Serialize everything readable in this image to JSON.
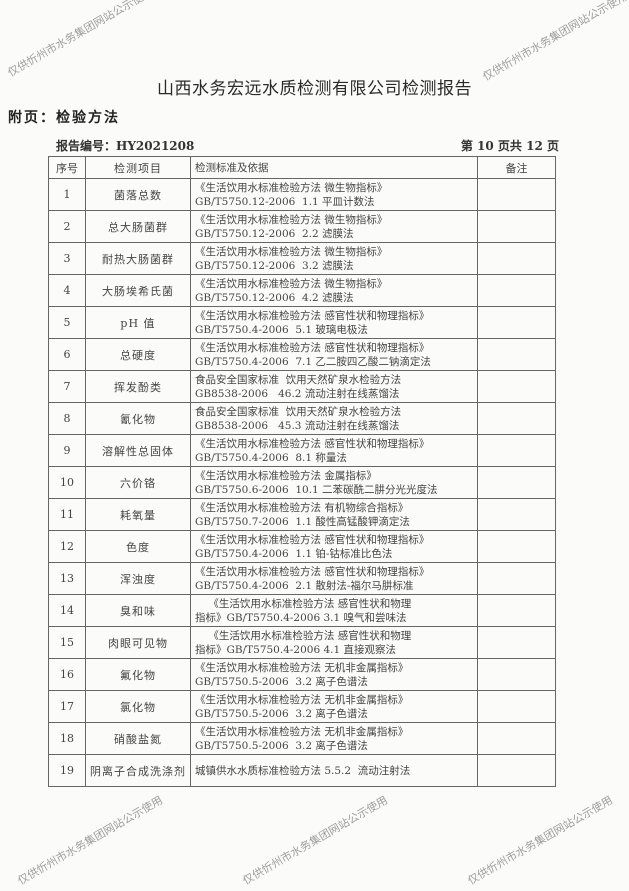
{
  "title": "山西水务宏远水质检测有限公司检测报告",
  "appendix": "附页：检验方法",
  "report_no": "报告编号：HY2021208",
  "page_no": "第 10 页共 12 页",
  "watermark": "仅供忻州市水务集团网站公示使用",
  "headers": [
    "序号",
    "检测项目",
    "检测标准及依据",
    "备注"
  ],
  "rows": [
    {
      "no": "1",
      "item": "菌落总数",
      "std1": "《生活饮用水标准检验方法 微生物指标》",
      "std2": "GB/T5750.12-2006  1.1 平皿计数法",
      "note": ""
    },
    {
      "no": "2",
      "item": "总大肠菌群",
      "std1": "《生活饮用水标准检验方法 微生物指标》",
      "std2": "GB/T5750.12-2006  2.2 滤膜法",
      "note": ""
    },
    {
      "no": "3",
      "item": "耐热大肠菌群",
      "std1": "《生活饮用水标准检验方法 微生物指标》",
      "std2": "GB/T5750.12-2006  3.2 滤膜法",
      "note": ""
    },
    {
      "no": "4",
      "item": "大肠埃希氏菌",
      "std1": "《生活饮用水标准检验方法 微生物指标》",
      "std2": "GB/T5750.12-2006  4.2 滤膜法",
      "note": ""
    },
    {
      "no": "5",
      "item": "pH 值",
      "std1": "《生活饮用水标准检验方法 感官性状和物理指标》",
      "std2": "GB/T5750.4-2006  5.1 玻璃电极法",
      "note": ""
    },
    {
      "no": "6",
      "item": "总硬度",
      "std1": "《生活饮用水标准检验方法 感官性状和物理指标》",
      "std2": "GB/T5750.4-2006  7.1 乙二胺四乙酸二钠滴定法",
      "note": ""
    },
    {
      "no": "7",
      "item": "挥发酚类",
      "std1": "食品安全国家标准  饮用天然矿泉水检验方法",
      "std2": "GB8538-2006   46.2 流动注射在线蒸馏法",
      "note": ""
    },
    {
      "no": "8",
      "item": "氰化物",
      "std1": "食品安全国家标准  饮用天然矿泉水检验方法",
      "std2": "GB8538-2006   45.3 流动注射在线蒸馏法",
      "note": ""
    },
    {
      "no": "9",
      "item": "溶解性总固体",
      "std1": "《生活饮用水标准检验方法 感官性状和物理指标》",
      "std2": "GB/T5750.4-2006  8.1 称量法",
      "note": ""
    },
    {
      "no": "10",
      "item": "六价铬",
      "std1": "《生活饮用水标准检验方法 金属指标》",
      "std2": "GB/T5750.6-2006  10.1 二苯碳酰二肼分光光度法",
      "note": ""
    },
    {
      "no": "11",
      "item": "耗氧量",
      "std1": "《生活饮用水标准检验方法 有机物综合指标》",
      "std2": "GB/T5750.7-2006  1.1 酸性高锰酸钾滴定法",
      "note": ""
    },
    {
      "no": "12",
      "item": "色度",
      "std1": "《生活饮用水标准检验方法 感官性状和物理指标》",
      "std2": "GB/T5750.4-2006  1.1 铂-钴标准比色法",
      "note": ""
    },
    {
      "no": "13",
      "item": "浑浊度",
      "std1": "《生活饮用水标准检验方法 感官性状和物理指标》",
      "std2": "GB/T5750.4-2006  2.1 散射法-福尔马肼标准",
      "note": ""
    },
    {
      "no": "14",
      "item": "臭和味",
      "std1": "    《生活饮用水标准检验方法 感官性状和物理",
      "std2": "指标》GB/T5750.4-2006 3.1 嗅气和尝味法",
      "note": ""
    },
    {
      "no": "15",
      "item": "肉眼可见物",
      "std1": "    《生活饮用水标准检验方法 感官性状和物理",
      "std2": "指标》GB/T5750.4-2006 4.1 直接观察法",
      "note": ""
    },
    {
      "no": "16",
      "item": "氟化物",
      "std1": "《生活饮用水标准检验方法 无机非金属指标》",
      "std2": "GB/T5750.5-2006  3.2 离子色谱法",
      "note": ""
    },
    {
      "no": "17",
      "item": "氯化物",
      "std1": "《生活饮用水标准检验方法 无机非金属指标》",
      "std2": "GB/T5750.5-2006  3.2 离子色谱法",
      "note": ""
    },
    {
      "no": "18",
      "item": "硝酸盐氮",
      "std1": "《生活饮用水标准检验方法 无机非金属指标》",
      "std2": "GB/T5750.5-2006  3.2 离子色谱法",
      "note": ""
    },
    {
      "no": "19",
      "item": "阴离子合成洗涤剂",
      "std1": "城镇供水水质标准检验方法 5.5.2  流动注射法",
      "std2": "",
      "note": ""
    }
  ]
}
